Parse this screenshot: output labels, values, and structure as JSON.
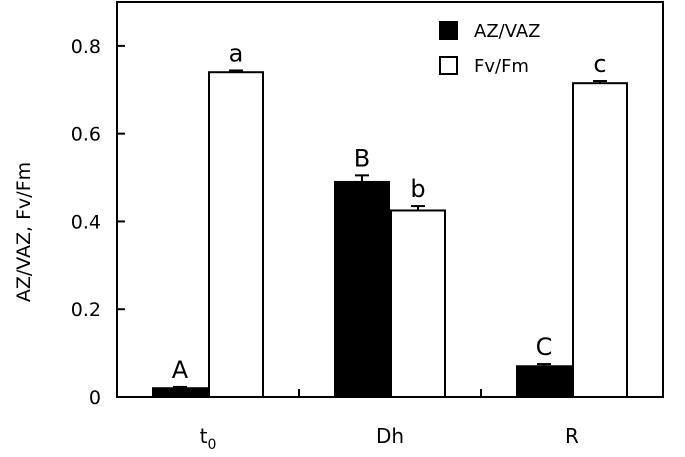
{
  "chart_data": {
    "type": "bar",
    "ylabel": "AZ/VAZ, Fv/Fm",
    "ylim": [
      0,
      0.9
    ],
    "yticks": [
      0,
      0.2,
      0.4,
      0.6,
      0.8
    ],
    "ytick_labels": [
      "0",
      "0.2",
      "0.4",
      "0.6",
      "0.8"
    ],
    "categories": [
      "t",
      "Dh",
      "R"
    ],
    "category_subscripts": [
      "0",
      "",
      ""
    ],
    "series": [
      {
        "name": "AZ/VAZ",
        "color": "#000000",
        "values": [
          0.02,
          0.49,
          0.07
        ],
        "errors": [
          0.003,
          0.015,
          0.005
        ],
        "letters": [
          "A",
          "B",
          "C"
        ]
      },
      {
        "name": "Fv/Fm",
        "color": "#ffffff",
        "values": [
          0.74,
          0.425,
          0.715
        ],
        "errors": [
          0.004,
          0.01,
          0.005
        ],
        "letters": [
          "a",
          "b",
          "c"
        ]
      }
    ],
    "legend_position": "top-right",
    "grid": false
  }
}
